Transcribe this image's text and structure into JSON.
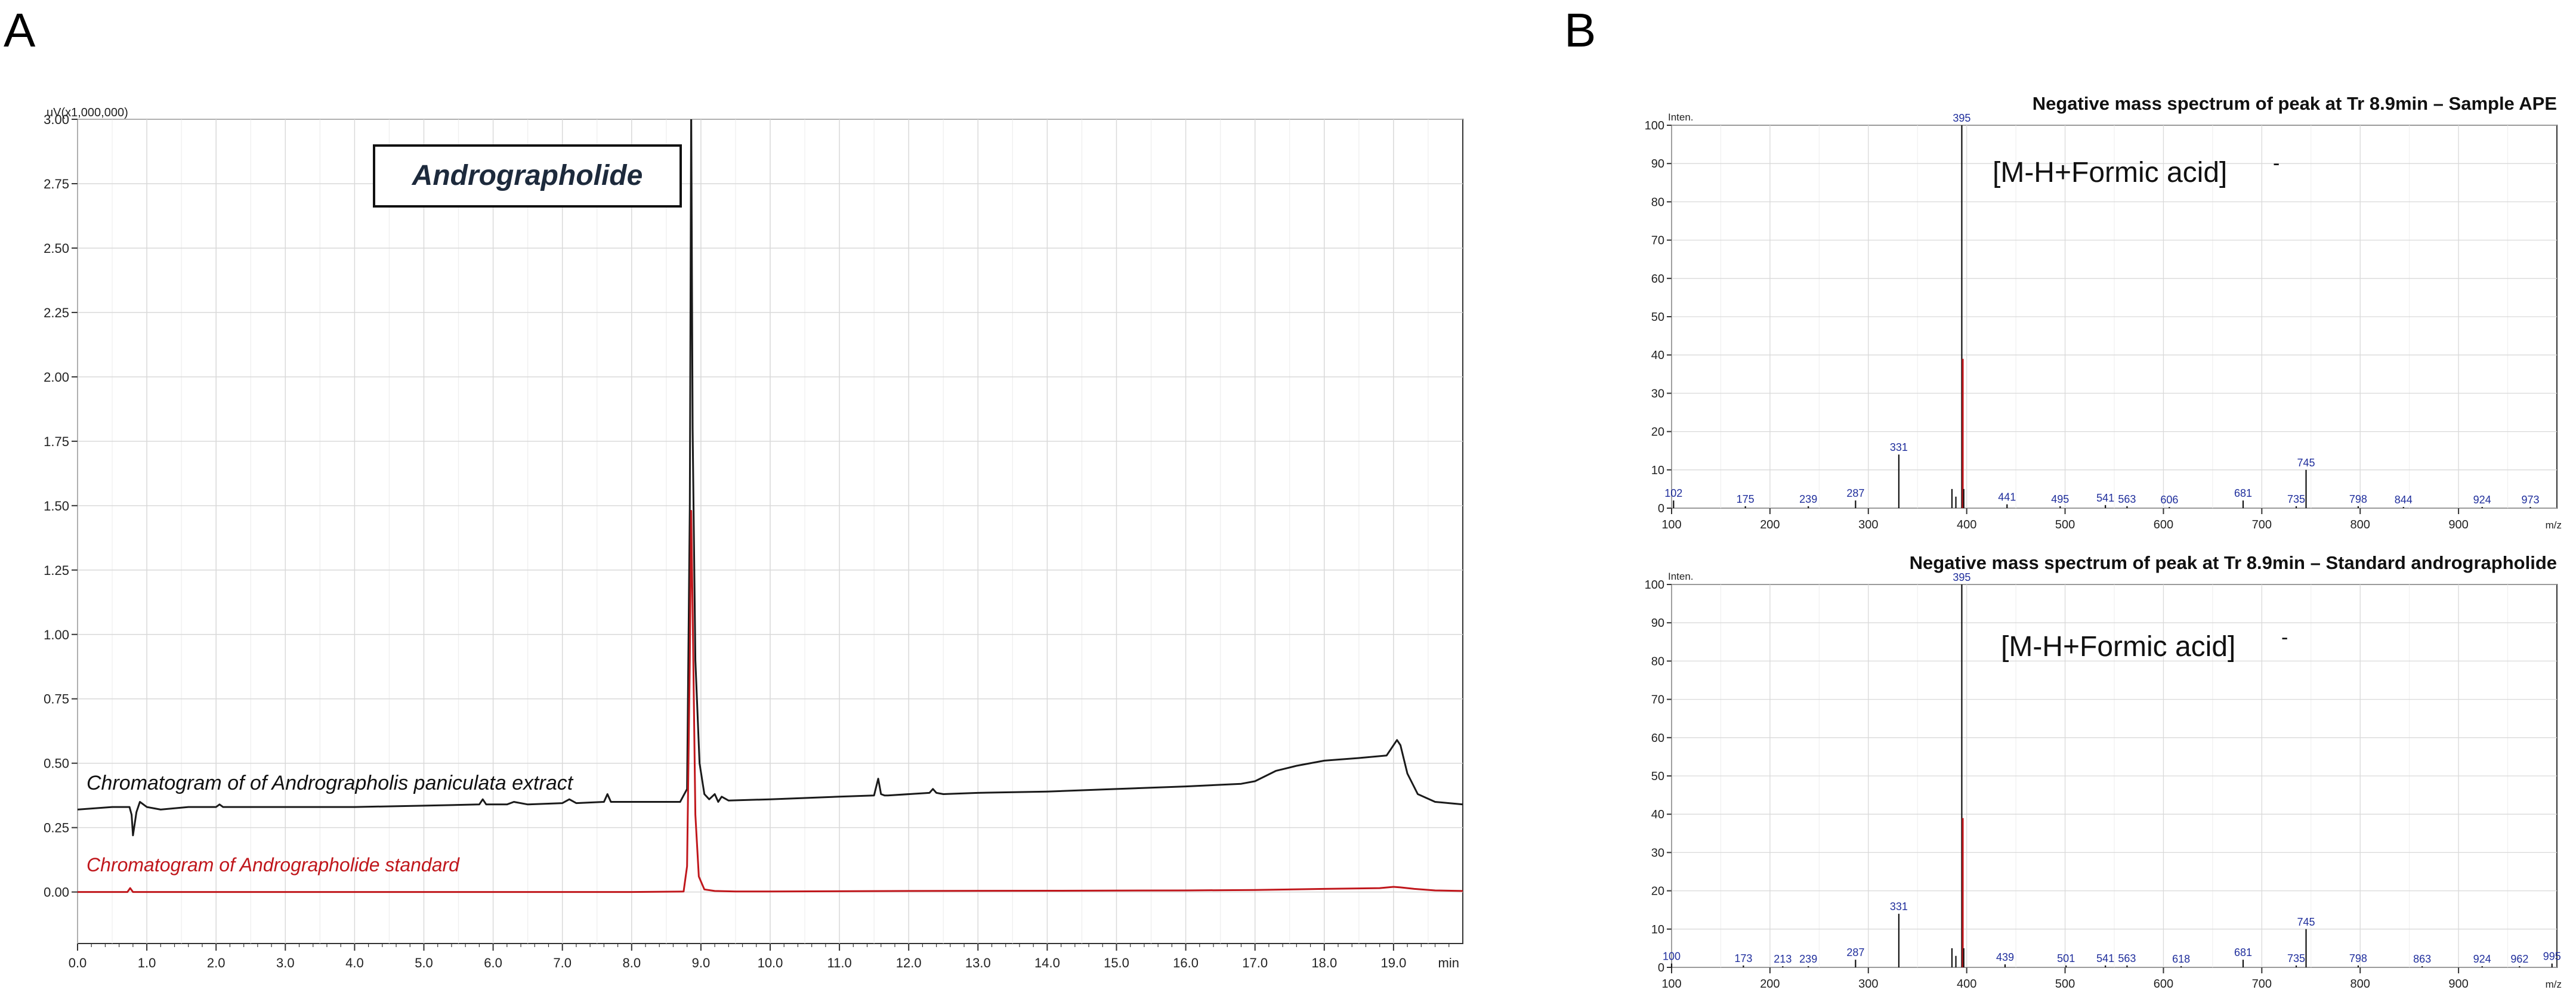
{
  "panels": {
    "a_label": "A",
    "b_label": "B"
  },
  "colors": {
    "extract": "#1a1a1a",
    "standard": "#c0171c",
    "axis_text": "#222222",
    "peak_label": "#1f2e9c",
    "grid": "#d9d9d9"
  },
  "chart_data": [
    {
      "id": "chromatogram",
      "type": "line",
      "title": "Andrographolide",
      "ylabel": "uV(x1,000,000)",
      "xlabel": "min",
      "xlim": [
        0,
        20
      ],
      "ylim": [
        -0.2,
        3.0
      ],
      "xticks": [
        0,
        1,
        2,
        3,
        4,
        5,
        6,
        7,
        8,
        9,
        10,
        11,
        12,
        13,
        14,
        15,
        16,
        17,
        18,
        19
      ],
      "xtick_labels": [
        "0.0",
        "1.0",
        "2.0",
        "3.0",
        "4.0",
        "5.0",
        "6.0",
        "7.0",
        "8.0",
        "9.0",
        "10.0",
        "11.0",
        "12.0",
        "13.0",
        "14.0",
        "15.0",
        "16.0",
        "17.0",
        "18.0",
        "19.0"
      ],
      "yticks": [
        0,
        0.25,
        0.5,
        0.75,
        1.0,
        1.25,
        1.5,
        1.75,
        2.0,
        2.25,
        2.5,
        2.75,
        3.0
      ],
      "ytick_labels": [
        "0.00",
        "0.25",
        "0.50",
        "0.75",
        "1.00",
        "1.25",
        "1.50",
        "1.75",
        "2.00",
        "2.25",
        "2.50",
        "2.75",
        "3.00"
      ],
      "grid": true,
      "series": [
        {
          "name": "Chromatogram of of Andrographolis paniculata extract",
          "x": [
            0.0,
            0.5,
            0.75,
            0.78,
            0.8,
            0.85,
            0.9,
            1.0,
            1.2,
            1.6,
            2.0,
            2.05,
            2.1,
            3.0,
            4.0,
            5.0,
            5.8,
            5.85,
            5.9,
            6.2,
            6.3,
            6.5,
            7.0,
            7.1,
            7.2,
            7.6,
            7.65,
            7.7,
            8.0,
            8.7,
            8.8,
            8.84,
            8.86,
            8.88,
            8.92,
            8.98,
            9.05,
            9.12,
            9.2,
            9.25,
            9.3,
            9.4,
            10.0,
            11.0,
            11.5,
            11.56,
            11.6,
            11.65,
            11.7,
            12.3,
            12.35,
            12.4,
            12.5,
            13.0,
            14.0,
            15.0,
            16.0,
            16.8,
            17.0,
            17.3,
            17.6,
            18.0,
            18.5,
            18.9,
            19.05,
            19.1,
            19.2,
            19.35,
            19.6,
            19.8,
            20.0
          ],
          "y": [
            0.32,
            0.33,
            0.33,
            0.3,
            0.22,
            0.31,
            0.35,
            0.33,
            0.32,
            0.33,
            0.33,
            0.34,
            0.33,
            0.33,
            0.33,
            0.335,
            0.34,
            0.36,
            0.34,
            0.34,
            0.35,
            0.34,
            0.345,
            0.36,
            0.345,
            0.35,
            0.38,
            0.35,
            0.35,
            0.35,
            0.4,
            1.5,
            3.05,
            1.8,
            0.9,
            0.5,
            0.38,
            0.36,
            0.38,
            0.35,
            0.37,
            0.355,
            0.36,
            0.37,
            0.375,
            0.44,
            0.38,
            0.375,
            0.375,
            0.385,
            0.4,
            0.385,
            0.38,
            0.385,
            0.39,
            0.4,
            0.41,
            0.42,
            0.43,
            0.47,
            0.49,
            0.51,
            0.52,
            0.53,
            0.59,
            0.57,
            0.46,
            0.38,
            0.35,
            0.345,
            0.34
          ]
        },
        {
          "name": "Chromatogram of Andrographolide standard",
          "x": [
            0.0,
            0.6,
            0.72,
            0.76,
            0.8,
            1.0,
            2.0,
            3.0,
            4.0,
            5.0,
            6.0,
            7.0,
            8.0,
            8.75,
            8.8,
            8.84,
            8.86,
            8.88,
            8.92,
            8.97,
            9.05,
            9.2,
            9.5,
            10.0,
            12.0,
            14.0,
            16.0,
            17.0,
            18.0,
            18.8,
            19.0,
            19.1,
            19.3,
            19.6,
            20.0
          ],
          "y": [
            0.0,
            0.0,
            0.0,
            0.015,
            0.0,
            0.0,
            0.0,
            0.0,
            0.0,
            0.0,
            0.0,
            0.0,
            0.0,
            0.002,
            0.1,
            0.9,
            1.48,
            1.1,
            0.3,
            0.06,
            0.01,
            0.004,
            0.002,
            0.002,
            0.004,
            0.005,
            0.006,
            0.008,
            0.012,
            0.015,
            0.02,
            0.018,
            0.012,
            0.006,
            0.004
          ]
        }
      ]
    },
    {
      "id": "ms-sample",
      "type": "bar",
      "title": "Negative mass spectrum of peak at Tr 8.9min – Sample APE",
      "annotation": "[M-H+Formic acid]",
      "annotation_sup": "-",
      "ylabel": "Inten.",
      "xlabel": "m/z",
      "xlim": [
        100,
        1000
      ],
      "ylim": [
        0,
        100
      ],
      "xticks": [
        100,
        200,
        300,
        400,
        500,
        600,
        700,
        800,
        900
      ],
      "xtick_labels": [
        "100",
        "200",
        "300",
        "400",
        "500",
        "600",
        "700",
        "800",
        "900"
      ],
      "yticks": [
        0,
        10,
        20,
        30,
        40,
        50,
        60,
        70,
        80,
        90,
        100
      ],
      "ytick_labels": [
        "0",
        "10",
        "20",
        "30",
        "40",
        "50",
        "60",
        "70",
        "80",
        "90",
        "100"
      ],
      "grid": true,
      "peaks": [
        {
          "mz": 102,
          "intensity": 2,
          "label": "102"
        },
        {
          "mz": 175,
          "intensity": 0.5,
          "label": "175"
        },
        {
          "mz": 239,
          "intensity": 0.5,
          "label": "239"
        },
        {
          "mz": 287,
          "intensity": 2,
          "label": "287"
        },
        {
          "mz": 331,
          "intensity": 14,
          "label": "331"
        },
        {
          "mz": 385,
          "intensity": 5
        },
        {
          "mz": 389,
          "intensity": 3
        },
        {
          "mz": 395,
          "intensity": 100,
          "label": "395"
        },
        {
          "mz": 396,
          "intensity": 39
        },
        {
          "mz": 397,
          "intensity": 5
        },
        {
          "mz": 441,
          "intensity": 1,
          "label": "441"
        },
        {
          "mz": 495,
          "intensity": 0.5,
          "label": "495"
        },
        {
          "mz": 541,
          "intensity": 0.8,
          "label": "541"
        },
        {
          "mz": 563,
          "intensity": 0.5,
          "label": "563"
        },
        {
          "mz": 606,
          "intensity": 0.3,
          "label": "606"
        },
        {
          "mz": 681,
          "intensity": 2,
          "label": "681"
        },
        {
          "mz": 735,
          "intensity": 0.5,
          "label": "735"
        },
        {
          "mz": 745,
          "intensity": 10,
          "label": "745"
        },
        {
          "mz": 798,
          "intensity": 0.5,
          "label": "798"
        },
        {
          "mz": 844,
          "intensity": 0.3,
          "label": "844"
        },
        {
          "mz": 924,
          "intensity": 0.3,
          "label": "924"
        },
        {
          "mz": 973,
          "intensity": 0.3,
          "label": "973"
        }
      ]
    },
    {
      "id": "ms-standard",
      "type": "bar",
      "title": "Negative mass spectrum of peak at Tr 8.9min – Standard andrographolide",
      "annotation": "[M-H+Formic acid]",
      "annotation_sup": "-",
      "ylabel": "Inten.",
      "xlabel": "m/z",
      "xlim": [
        100,
        1000
      ],
      "ylim": [
        0,
        100
      ],
      "xticks": [
        100,
        200,
        300,
        400,
        500,
        600,
        700,
        800,
        900
      ],
      "xtick_labels": [
        "100",
        "200",
        "300",
        "400",
        "500",
        "600",
        "700",
        "800",
        "900"
      ],
      "yticks": [
        0,
        10,
        20,
        30,
        40,
        50,
        60,
        70,
        80,
        90,
        100
      ],
      "ytick_labels": [
        "0",
        "10",
        "20",
        "30",
        "40",
        "50",
        "60",
        "70",
        "80",
        "90",
        "100"
      ],
      "grid": true,
      "peaks": [
        {
          "mz": 100,
          "intensity": 1,
          "label": "100"
        },
        {
          "mz": 173,
          "intensity": 0.5,
          "label": "173"
        },
        {
          "mz": 213,
          "intensity": 0.3,
          "label": "213"
        },
        {
          "mz": 239,
          "intensity": 0.3,
          "label": "239"
        },
        {
          "mz": 287,
          "intensity": 2,
          "label": "287"
        },
        {
          "mz": 331,
          "intensity": 14,
          "label": "331"
        },
        {
          "mz": 385,
          "intensity": 5
        },
        {
          "mz": 389,
          "intensity": 3
        },
        {
          "mz": 395,
          "intensity": 100,
          "label": "395"
        },
        {
          "mz": 396,
          "intensity": 39
        },
        {
          "mz": 397,
          "intensity": 5
        },
        {
          "mz": 439,
          "intensity": 0.8,
          "label": "439"
        },
        {
          "mz": 501,
          "intensity": 0.5,
          "label": "501"
        },
        {
          "mz": 541,
          "intensity": 0.5,
          "label": "541"
        },
        {
          "mz": 563,
          "intensity": 0.5,
          "label": "563"
        },
        {
          "mz": 618,
          "intensity": 0.3,
          "label": "618"
        },
        {
          "mz": 681,
          "intensity": 2,
          "label": "681"
        },
        {
          "mz": 735,
          "intensity": 0.5,
          "label": "735"
        },
        {
          "mz": 745,
          "intensity": 10,
          "label": "745"
        },
        {
          "mz": 798,
          "intensity": 0.5,
          "label": "798"
        },
        {
          "mz": 863,
          "intensity": 0.3,
          "label": "863"
        },
        {
          "mz": 924,
          "intensity": 0.3,
          "label": "924"
        },
        {
          "mz": 962,
          "intensity": 0.3,
          "label": "962"
        },
        {
          "mz": 995,
          "intensity": 1,
          "label": "995"
        }
      ]
    }
  ]
}
